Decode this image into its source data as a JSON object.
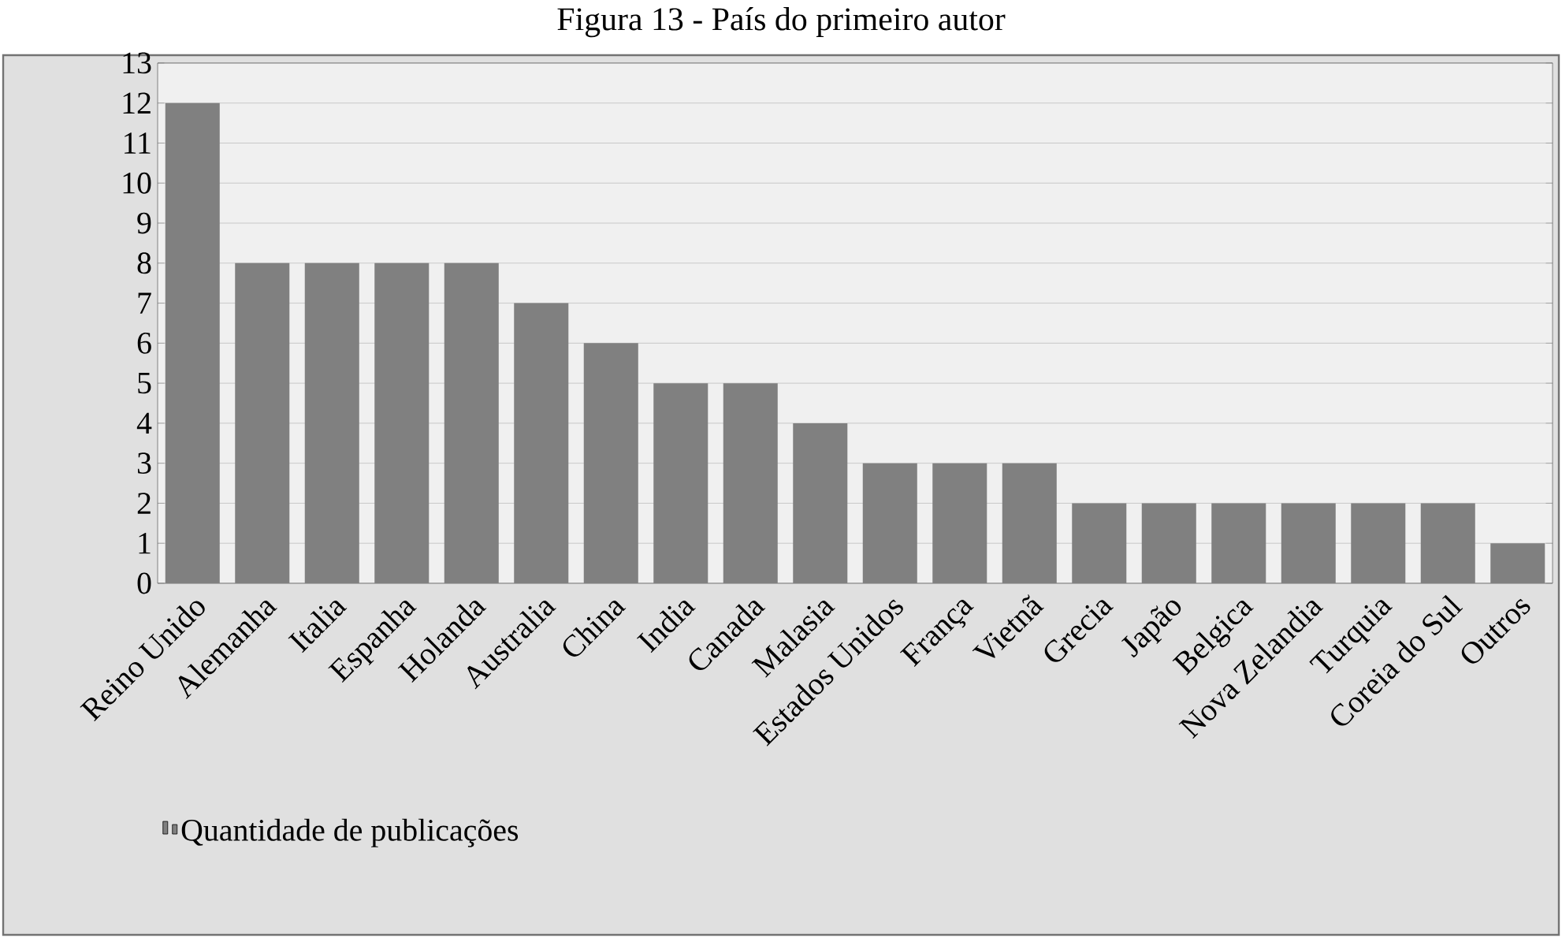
{
  "chart_data": {
    "type": "bar",
    "title": "Figura 13 - País do primeiro autor",
    "categories": [
      "Reino Unido",
      "Alemanha",
      "Italia",
      "Espanha",
      "Holanda",
      "Australia",
      "China",
      "India",
      "Canada",
      "Malasia",
      "Estados Unidos",
      "França",
      "Vietnã",
      "Grecia",
      "Japão",
      "Belgica",
      "Nova Zelandia",
      "Turquia",
      "Coreia do Sul",
      "Outros"
    ],
    "series": [
      {
        "name": "Quantidade de publicações",
        "color": "#808080",
        "values": [
          12,
          8,
          8,
          8,
          8,
          7,
          6,
          5,
          5,
          4,
          3,
          3,
          3,
          2,
          2,
          2,
          2,
          2,
          2,
          1
        ]
      }
    ],
    "ylim": [
      0,
      13
    ],
    "yticks": [
      0,
      1,
      2,
      3,
      4,
      5,
      6,
      7,
      8,
      9,
      10,
      11,
      12,
      13
    ],
    "grid": "y",
    "legend": "bottom left"
  }
}
